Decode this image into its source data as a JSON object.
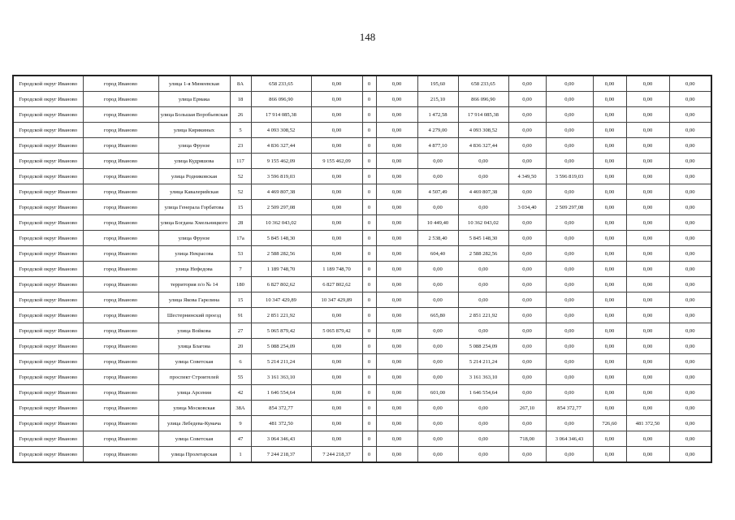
{
  "page_number": "148",
  "rows": [
    [
      "Городской округ Иваново",
      "город Иваново",
      "улица 1-я Минеевская",
      "8А",
      "658 233,65",
      "0,00",
      "0",
      "0,00",
      "195,60",
      "658 233,65",
      "0,00",
      "0,00",
      "0,00",
      "0,00",
      "0,00"
    ],
    [
      "Городской округ Иваново",
      "город Иваново",
      "улица Ермака",
      "18",
      "866 096,90",
      "0,00",
      "0",
      "0,00",
      "215,10",
      "866 096,90",
      "0,00",
      "0,00",
      "0,00",
      "0,00",
      "0,00"
    ],
    [
      "Городской округ Иваново",
      "город Иваново",
      "улица Большая Воробьевская",
      "26",
      "17 914 085,38",
      "0,00",
      "0",
      "0,00",
      "1 472,58",
      "17 914 085,38",
      "0,00",
      "0,00",
      "0,00",
      "0,00",
      "0,00"
    ],
    [
      "Городской округ Иваново",
      "город Иваново",
      "улица Кирякиных",
      "5",
      "4 093 308,52",
      "0,00",
      "0",
      "0,00",
      "4 279,00",
      "4 093 308,52",
      "0,00",
      "0,00",
      "0,00",
      "0,00",
      "0,00"
    ],
    [
      "Городской округ Иваново",
      "город Иваново",
      "улица Фрунзе",
      "23",
      "4 836 327,44",
      "0,00",
      "0",
      "0,00",
      "4 877,10",
      "4 836 327,44",
      "0,00",
      "0,00",
      "0,00",
      "0,00",
      "0,00"
    ],
    [
      "Городской округ Иваново",
      "город Иваново",
      "улица Кудряшова",
      "117",
      "9 155 462,09",
      "9 155 462,09",
      "0",
      "0,00",
      "0,00",
      "0,00",
      "0,00",
      "0,00",
      "0,00",
      "0,00",
      "0,00"
    ],
    [
      "Городской округ Иваново",
      "город Иваново",
      "улица Родниковская",
      "52",
      "3 596 819,03",
      "0,00",
      "0",
      "0,00",
      "0,00",
      "0,00",
      "4 349,50",
      "3 596 819,03",
      "0,00",
      "0,00",
      "0,00"
    ],
    [
      "Городской округ Иваново",
      "город Иваново",
      "улица Кавалерийская",
      "52",
      "4 469 807,38",
      "0,00",
      "0",
      "0,00",
      "4 507,49",
      "4 469 807,38",
      "0,00",
      "0,00",
      "0,00",
      "0,00",
      "0,00"
    ],
    [
      "Городской округ Иваново",
      "город Иваново",
      "улица Генерала Горбатова",
      "15",
      "2 509 297,08",
      "0,00",
      "0",
      "0,00",
      "0,00",
      "0,00",
      "3 034,40",
      "2 509 297,08",
      "0,00",
      "0,00",
      "0,00"
    ],
    [
      "Городской округ Иваново",
      "город Иваново",
      "улица Богдана Хмельницкого",
      "28",
      "10 362 043,02",
      "0,00",
      "0",
      "0,00",
      "10 449,40",
      "10 362 043,02",
      "0,00",
      "0,00",
      "0,00",
      "0,00",
      "0,00"
    ],
    [
      "Городской округ Иваново",
      "город Иваново",
      "улица Фрунзе",
      "17а",
      "5 845 148,30",
      "0,00",
      "0",
      "0,00",
      "2 538,40",
      "5 845 148,30",
      "0,00",
      "0,00",
      "0,00",
      "0,00",
      "0,00"
    ],
    [
      "Городской округ Иваново",
      "город Иваново",
      "улица Некрасова",
      "53",
      "2 588 282,56",
      "0,00",
      "0",
      "0,00",
      "604,40",
      "2 588 282,56",
      "0,00",
      "0,00",
      "0,00",
      "0,00",
      "0,00"
    ],
    [
      "Городской округ Иваново",
      "город Иваново",
      "улица Нефедова",
      "7",
      "1 189 748,70",
      "1 189 748,70",
      "0",
      "0,00",
      "0,00",
      "0,00",
      "0,00",
      "0,00",
      "0,00",
      "0,00",
      "0,00"
    ],
    [
      "Городской округ Иваново",
      "город Иваново",
      "территория п/о № 14",
      "180",
      "6 827 802,62",
      "6 827 802,62",
      "0",
      "0,00",
      "0,00",
      "0,00",
      "0,00",
      "0,00",
      "0,00",
      "0,00",
      "0,00"
    ],
    [
      "Городской округ Иваново",
      "город Иваново",
      "улица Якова Гарелина",
      "15",
      "10 347 429,89",
      "10 347 429,89",
      "0",
      "0,00",
      "0,00",
      "0,00",
      "0,00",
      "0,00",
      "0,00",
      "0,00",
      "0,00"
    ],
    [
      "Городской округ Иваново",
      "город Иваново",
      "Шестернинский проезд",
      "91",
      "2 851 221,92",
      "0,00",
      "0",
      "0,00",
      "665,80",
      "2 851 221,92",
      "0,00",
      "0,00",
      "0,00",
      "0,00",
      "0,00"
    ],
    [
      "Городской округ Иваново",
      "город Иваново",
      "улица Войкова",
      "27",
      "5 065 879,42",
      "5 065 879,42",
      "0",
      "0,00",
      "0,00",
      "0,00",
      "0,00",
      "0,00",
      "0,00",
      "0,00",
      "0,00"
    ],
    [
      "Городской округ Иваново",
      "город Иваново",
      "улица Благова",
      "20",
      "5 088 254,09",
      "0,00",
      "0",
      "0,00",
      "0,00",
      "5 088 254,09",
      "0,00",
      "0,00",
      "0,00",
      "0,00",
      "0,00"
    ],
    [
      "Городской округ Иваново",
      "город Иваново",
      "улица Советская",
      "6",
      "5 214 211,24",
      "0,00",
      "0",
      "0,00",
      "0,00",
      "5 214 211,24",
      "0,00",
      "0,00",
      "0,00",
      "0,00",
      "0,00"
    ],
    [
      "Городской округ Иваново",
      "город Иваново",
      "проспект Строителей",
      "55",
      "3 161 363,10",
      "0,00",
      "0",
      "0,00",
      "0,00",
      "3 161 363,10",
      "0,00",
      "0,00",
      "0,00",
      "0,00",
      "0,00"
    ],
    [
      "Городской округ Иваново",
      "город Иваново",
      "улица Арсения",
      "42",
      "1 646 554,64",
      "0,00",
      "0",
      "0,00",
      "601,00",
      "1 646 554,64",
      "0,00",
      "0,00",
      "0,00",
      "0,00",
      "0,00"
    ],
    [
      "Городской округ Иваново",
      "город Иваново",
      "улица Московская",
      "38А",
      "854 372,77",
      "0,00",
      "0",
      "0,00",
      "0,00",
      "0,00",
      "267,10",
      "854 372,77",
      "0,00",
      "0,00",
      "0,00"
    ],
    [
      "Городской округ Иваново",
      "город Иваново",
      "улица Лебедева-Кумача",
      "9",
      "481 372,50",
      "0,00",
      "0",
      "0,00",
      "0,00",
      "0,00",
      "0,00",
      "0,00",
      "726,60",
      "481 372,50",
      "0,00"
    ],
    [
      "Городской округ Иваново",
      "город Иваново",
      "улица Советская",
      "47",
      "3 064 346,43",
      "0,00",
      "0",
      "0,00",
      "0,00",
      "0,00",
      "718,00",
      "3 064 346,43",
      "0,00",
      "0,00",
      "0,00"
    ],
    [
      "Городской округ Иваново",
      "город Иваново",
      "улица Пролетарская",
      "1",
      "7 244 218,37",
      "7 244 218,37",
      "0",
      "0,00",
      "0,00",
      "0,00",
      "0,00",
      "0,00",
      "0,00",
      "0,00",
      "0,00"
    ]
  ]
}
